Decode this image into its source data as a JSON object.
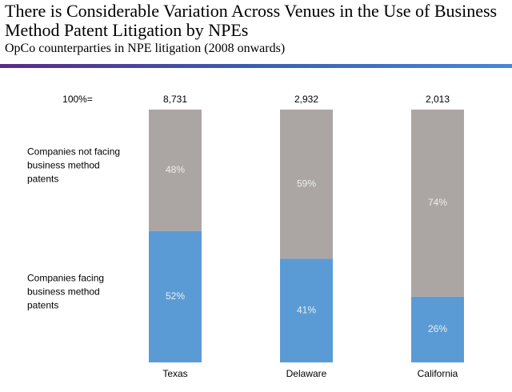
{
  "chart_data": {
    "type": "stacked_bar_100",
    "title": "There is Considerable Variation Across Venues in the Use of Business Method Patent Litigation by NPEs",
    "subtitle": "OpCo counterparties in NPE litigation (2008 onwards)",
    "categories": [
      "Texas",
      "Delaware",
      "California"
    ],
    "series": [
      {
        "name": "Companies facing business method patents",
        "color": "#5b9bd5",
        "values": [
          52,
          41,
          26
        ],
        "value_labels": [
          "52%",
          "41%",
          "26%"
        ]
      },
      {
        "name": "Companies not facing business method patents",
        "color": "#aba6a4",
        "values": [
          48,
          59,
          74
        ],
        "value_labels": [
          "48%",
          "59%",
          "74%"
        ]
      }
    ],
    "totals_label": "100%=",
    "totals": [
      {
        "value": 8731,
        "label": "8,731"
      },
      {
        "value": 2932,
        "label": "2,932"
      },
      {
        "value": 2013,
        "label": "2,013"
      }
    ],
    "ylim": [
      0,
      100
    ]
  }
}
